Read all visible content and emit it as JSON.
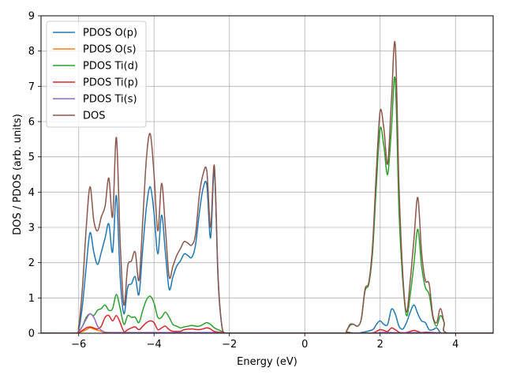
{
  "chart_data": {
    "type": "line",
    "xlabel": "Energy (eV)",
    "ylabel": "DOS / PDOS (arb. units)",
    "xlim": [
      -7,
      5
    ],
    "ylim": [
      0,
      9
    ],
    "xticks": [
      -6,
      -4,
      -2,
      0,
      2,
      4
    ],
    "xtick_labels": [
      "−6",
      "−4",
      "−2",
      "0",
      "2",
      "4"
    ],
    "yticks": [
      0,
      1,
      2,
      3,
      4,
      5,
      6,
      7,
      8,
      9
    ],
    "ytick_labels": [
      "0",
      "1",
      "2",
      "3",
      "4",
      "5",
      "6",
      "7",
      "8",
      "9"
    ],
    "grid": true,
    "legend_position": "top-left",
    "series": [
      {
        "name": "PDOS O(p)",
        "color": "#1f77b4",
        "x": [
          -7,
          -6.1,
          -6.0,
          -5.9,
          -5.8,
          -5.7,
          -5.6,
          -5.5,
          -5.4,
          -5.3,
          -5.2,
          -5.1,
          -5.0,
          -4.9,
          -4.8,
          -4.7,
          -4.6,
          -4.5,
          -4.4,
          -4.3,
          -4.2,
          -4.1,
          -4.0,
          -3.9,
          -3.8,
          -3.7,
          -3.6,
          -3.5,
          -3.4,
          -3.3,
          -3.2,
          -3.1,
          -3.0,
          -2.9,
          -2.8,
          -2.7,
          -2.6,
          -2.5,
          -2.4,
          -2.3,
          -2.2,
          -2.1,
          -2.0,
          -1.9,
          1.2,
          1.5,
          1.8,
          1.9,
          2.0,
          2.1,
          2.2,
          2.3,
          2.4,
          2.5,
          2.6,
          2.7,
          2.8,
          2.9,
          3.0,
          3.1,
          3.2,
          3.3,
          3.4,
          3.5,
          3.6,
          3.7,
          5
        ],
        "y": [
          0,
          0,
          0.1,
          0.8,
          1.9,
          2.85,
          2.3,
          1.95,
          2.3,
          2.7,
          3.1,
          2.3,
          3.9,
          1.6,
          0.55,
          1.3,
          1.4,
          1.6,
          1.1,
          2.4,
          3.6,
          4.15,
          3.4,
          2.25,
          3.35,
          2.3,
          1.25,
          1.6,
          1.9,
          2.05,
          2.25,
          2.2,
          2.15,
          2.5,
          3.4,
          4.1,
          4.2,
          2.7,
          4.6,
          1.5,
          0.2,
          0,
          0,
          0,
          0,
          0.02,
          0.1,
          0.25,
          0.35,
          0.25,
          0.25,
          0.68,
          0.55,
          0.2,
          0.12,
          0.3,
          0.6,
          0.8,
          0.55,
          0.35,
          0.3,
          0.1,
          0.1,
          0.15,
          0.02,
          0,
          0
        ]
      },
      {
        "name": "PDOS O(s)",
        "color": "#ff7f0e",
        "x": [
          -7,
          -6.1,
          -6.0,
          -5.9,
          -5.8,
          -5.7,
          -5.6,
          -5.5,
          -5.4,
          -5.3,
          -5.2,
          -5.0,
          -4.8,
          -4.5,
          -4.2,
          -4.0,
          -3.8,
          -3.5,
          -3.0,
          -2.5,
          -2.2,
          -2.0,
          1.5,
          2.0,
          2.3,
          2.6,
          3.0,
          3.5,
          4.0,
          5
        ],
        "y": [
          0,
          0,
          0.02,
          0.05,
          0.1,
          0.15,
          0.12,
          0.08,
          0.05,
          0.02,
          0.02,
          0.01,
          0.01,
          0.01,
          0.01,
          0.01,
          0.01,
          0.01,
          0.01,
          0.01,
          0.01,
          0,
          0,
          0.01,
          0.01,
          0.01,
          0.01,
          0.01,
          0,
          0
        ]
      },
      {
        "name": "PDOS Ti(d)",
        "color": "#2ca02c",
        "x": [
          -7,
          -6.1,
          -6.0,
          -5.9,
          -5.8,
          -5.7,
          -5.6,
          -5.5,
          -5.4,
          -5.3,
          -5.2,
          -5.1,
          -5.0,
          -4.9,
          -4.8,
          -4.7,
          -4.6,
          -4.5,
          -4.4,
          -4.3,
          -4.2,
          -4.1,
          -4.0,
          -3.9,
          -3.8,
          -3.7,
          -3.6,
          -3.5,
          -3.4,
          -3.3,
          -3.2,
          -3.1,
          -3.0,
          -2.9,
          -2.8,
          -2.7,
          -2.6,
          -2.5,
          -2.4,
          -2.3,
          -2.2,
          -2.1,
          -2.0,
          1.0,
          1.1,
          1.2,
          1.3,
          1.4,
          1.5,
          1.6,
          1.7,
          1.8,
          1.9,
          2.0,
          2.1,
          2.2,
          2.3,
          2.4,
          2.5,
          2.6,
          2.7,
          2.8,
          2.9,
          3.0,
          3.1,
          3.2,
          3.3,
          3.4,
          3.5,
          3.6,
          3.7,
          3.8,
          5
        ],
        "y": [
          0,
          0,
          0.05,
          0.2,
          0.45,
          0.55,
          0.5,
          0.65,
          0.7,
          0.8,
          0.65,
          0.7,
          1.1,
          0.7,
          0.25,
          0.5,
          0.45,
          0.45,
          0.3,
          0.65,
          0.95,
          1.05,
          0.85,
          0.45,
          0.45,
          0.6,
          0.45,
          0.25,
          0.2,
          0.15,
          0.18,
          0.2,
          0.22,
          0.2,
          0.2,
          0.25,
          0.3,
          0.25,
          0.15,
          0.1,
          0.05,
          0,
          0,
          0,
          0.05,
          0.22,
          0.25,
          0.2,
          0.4,
          1.2,
          1.4,
          2.3,
          4.2,
          5.8,
          5.3,
          4.5,
          5.8,
          7.2,
          3.5,
          1.5,
          0.5,
          1.1,
          2.0,
          2.95,
          1.9,
          1.3,
          1.1,
          0.45,
          0.2,
          0.5,
          0.3,
          0,
          0
        ]
      },
      {
        "name": "PDOS Ti(p)",
        "color": "#d62728",
        "x": [
          -7,
          -6.1,
          -6.0,
          -5.9,
          -5.8,
          -5.7,
          -5.6,
          -5.5,
          -5.4,
          -5.3,
          -5.2,
          -5.1,
          -5.0,
          -4.9,
          -4.8,
          -4.7,
          -4.6,
          -4.5,
          -4.4,
          -4.3,
          -4.2,
          -4.1,
          -4.0,
          -3.9,
          -3.8,
          -3.7,
          -3.6,
          -3.5,
          -3.4,
          -3.3,
          -3.2,
          -3.0,
          -2.8,
          -2.6,
          -2.5,
          -2.4,
          -2.2,
          -2.0,
          1.5,
          1.8,
          1.9,
          2.0,
          2.1,
          2.2,
          2.3,
          2.4,
          2.5,
          2.6,
          2.7,
          2.8,
          2.9,
          3.0,
          3.1,
          3.2,
          3.4,
          3.6,
          3.8,
          5
        ],
        "y": [
          0,
          0,
          0.02,
          0.08,
          0.15,
          0.18,
          0.15,
          0.12,
          0.2,
          0.45,
          0.5,
          0.35,
          0.5,
          0.3,
          0.05,
          0.1,
          0.15,
          0.18,
          0.1,
          0.2,
          0.3,
          0.35,
          0.3,
          0.1,
          0.15,
          0.2,
          0.1,
          0.05,
          0.05,
          0.05,
          0.1,
          0.12,
          0.1,
          0.15,
          0.12,
          0.05,
          0.02,
          0,
          0,
          0.01,
          0.05,
          0.1,
          0.08,
          0.05,
          0.15,
          0.1,
          0.03,
          0.01,
          0.02,
          0.05,
          0.08,
          0.05,
          0.02,
          0.03,
          0.02,
          0.01,
          0,
          0
        ]
      },
      {
        "name": "PDOS Ti(s)",
        "color": "#9467bd",
        "x": [
          -7,
          -6.1,
          -6.0,
          -5.9,
          -5.8,
          -5.7,
          -5.6,
          -5.5,
          -5.4,
          -5.3,
          -5.2,
          -5.0,
          -4.8,
          -4.5,
          -4.2,
          -4.0,
          -3.8,
          -3.5,
          -3.0,
          -2.5,
          -2.2,
          -2.0,
          1.5,
          2.0,
          2.3,
          2.6,
          3.0,
          3.5,
          4.0,
          5
        ],
        "y": [
          0,
          0,
          0.05,
          0.2,
          0.4,
          0.55,
          0.45,
          0.2,
          0.08,
          0.03,
          0.02,
          0.02,
          0.02,
          0.02,
          0.02,
          0.02,
          0.02,
          0.02,
          0.02,
          0.02,
          0.01,
          0,
          0,
          0.02,
          0.02,
          0.01,
          0.02,
          0.01,
          0,
          0
        ]
      },
      {
        "name": "DOS",
        "color": "#8c564b",
        "x": [
          -7,
          -6.1,
          -6.0,
          -5.9,
          -5.8,
          -5.7,
          -5.6,
          -5.5,
          -5.4,
          -5.3,
          -5.2,
          -5.1,
          -5.0,
          -4.9,
          -4.8,
          -4.7,
          -4.6,
          -4.5,
          -4.4,
          -4.3,
          -4.2,
          -4.1,
          -4.0,
          -3.9,
          -3.8,
          -3.7,
          -3.6,
          -3.5,
          -3.4,
          -3.3,
          -3.2,
          -3.1,
          -3.0,
          -2.9,
          -2.8,
          -2.7,
          -2.6,
          -2.5,
          -2.4,
          -2.3,
          -2.2,
          -2.1,
          -2.0,
          -1.9,
          1.0,
          1.1,
          1.2,
          1.3,
          1.4,
          1.5,
          1.6,
          1.7,
          1.8,
          1.9,
          2.0,
          2.1,
          2.2,
          2.3,
          2.4,
          2.5,
          2.6,
          2.7,
          2.8,
          2.9,
          3.0,
          3.1,
          3.2,
          3.3,
          3.4,
          3.5,
          3.6,
          3.7,
          3.8,
          5
        ],
        "y": [
          0,
          0,
          0.2,
          1.3,
          3.0,
          4.15,
          3.2,
          2.9,
          3.3,
          3.6,
          4.4,
          3.3,
          5.55,
          2.6,
          0.8,
          1.9,
          2.05,
          2.3,
          1.5,
          3.2,
          5.0,
          5.65,
          4.5,
          2.9,
          4.25,
          3.0,
          1.6,
          1.9,
          2.2,
          2.4,
          2.6,
          2.55,
          2.5,
          2.8,
          3.9,
          4.5,
          4.6,
          3.0,
          4.75,
          1.6,
          0.2,
          0,
          0,
          0,
          0,
          0.05,
          0.25,
          0.25,
          0.2,
          0.4,
          1.25,
          1.45,
          2.5,
          4.6,
          6.3,
          5.8,
          4.8,
          6.6,
          8.2,
          4.2,
          1.7,
          0.6,
          1.5,
          2.7,
          3.85,
          2.3,
          1.5,
          1.4,
          0.5,
          0.3,
          0.7,
          0.3,
          0,
          0
        ]
      }
    ]
  }
}
